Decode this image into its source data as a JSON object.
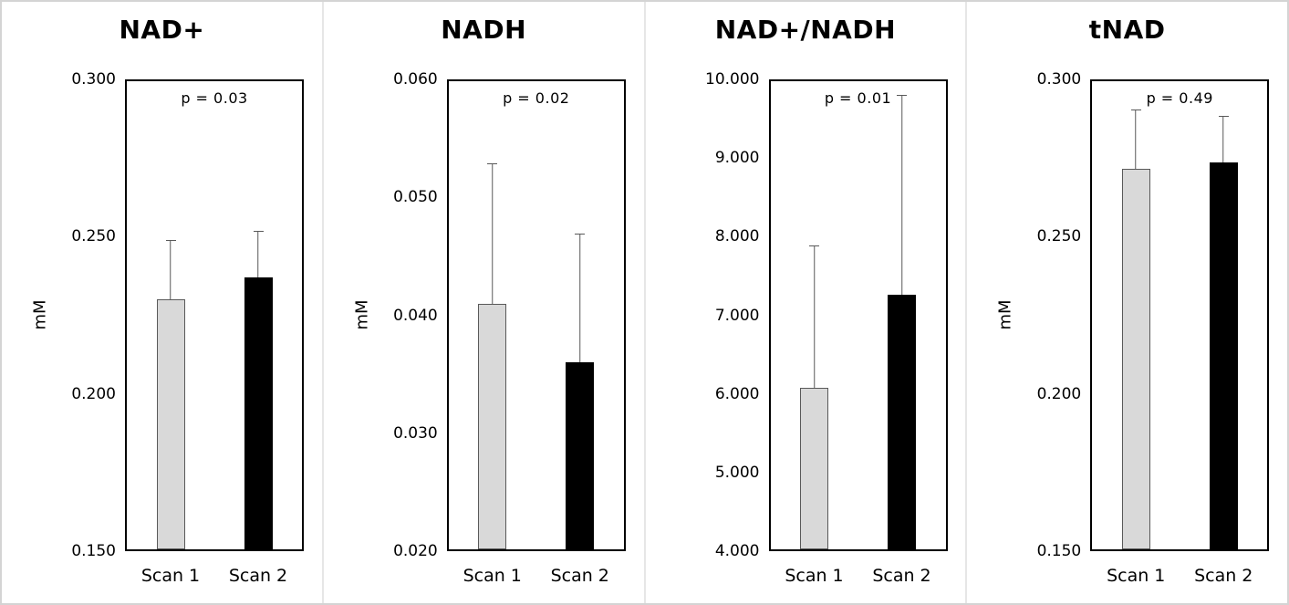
{
  "styles": {
    "bar_light_fill": "#d9d9d9",
    "bar_light_border": "#595959",
    "bar_dark_fill": "#000000",
    "error_color": "#595959",
    "axis_color": "#000000",
    "panel_separator": "#e6e6e6"
  },
  "chart_data": [
    {
      "type": "bar",
      "title": "NAD+",
      "p_label": "p = 0.03",
      "ylabel": "mM",
      "ylim": [
        0.15,
        0.3
      ],
      "yticks": [
        "0.300",
        "0.250",
        "0.200",
        "0.150"
      ],
      "grid": false,
      "legend": "none",
      "categories": [
        "Scan 1",
        "Scan 2"
      ],
      "bars": [
        {
          "label": "Scan 1",
          "value": 0.23,
          "error_top": 0.249,
          "style": "light"
        },
        {
          "label": "Scan 2",
          "value": 0.237,
          "error_top": 0.252,
          "style": "dark"
        }
      ]
    },
    {
      "type": "bar",
      "title": "NADH",
      "p_label": "p = 0.02",
      "ylabel": "mM",
      "ylim": [
        0.02,
        0.06
      ],
      "yticks": [
        "0.060",
        "0.050",
        "0.040",
        "0.030",
        "0.020"
      ],
      "grid": false,
      "legend": "none",
      "categories": [
        "Scan 1",
        "Scan 2"
      ],
      "bars": [
        {
          "label": "Scan 1",
          "value": 0.041,
          "error_top": 0.053,
          "style": "light"
        },
        {
          "label": "Scan 2",
          "value": 0.036,
          "error_top": 0.047,
          "style": "dark"
        }
      ]
    },
    {
      "type": "bar",
      "title": "NAD+/NADH",
      "p_label": "p = 0.01",
      "ylabel": "",
      "ylim": [
        4.0,
        10.0
      ],
      "yticks": [
        "10.000",
        "9.000",
        "8.000",
        "7.000",
        "6.000",
        "5.000",
        "4.000"
      ],
      "grid": false,
      "legend": "none",
      "categories": [
        "Scan 1",
        "Scan 2"
      ],
      "bars": [
        {
          "label": "Scan 1",
          "value": 6.07,
          "error_top": 7.89,
          "style": "light"
        },
        {
          "label": "Scan 2",
          "value": 7.26,
          "error_top": 9.83,
          "style": "dark"
        }
      ]
    },
    {
      "type": "bar",
      "title": "tNAD",
      "p_label": "p = 0.49",
      "ylabel": "mM",
      "ylim": [
        0.15,
        0.3
      ],
      "yticks": [
        "0.300",
        "0.250",
        "0.200",
        "0.150"
      ],
      "grid": false,
      "legend": "none",
      "categories": [
        "Scan 1",
        "Scan 2"
      ],
      "bars": [
        {
          "label": "Scan 1",
          "value": 0.272,
          "error_top": 0.291,
          "style": "light"
        },
        {
          "label": "Scan 2",
          "value": 0.274,
          "error_top": 0.289,
          "style": "dark"
        }
      ]
    }
  ]
}
